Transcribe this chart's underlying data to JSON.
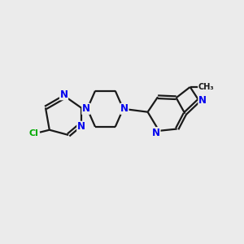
{
  "bg_color": "#ebebeb",
  "bond_color": "#1a1a1a",
  "atom_color": "#0000ee",
  "cl_color": "#00aa00",
  "line_width": 1.6,
  "font_size": 8.5,
  "figsize": [
    3.0,
    3.0
  ],
  "dpi": 100,
  "xlim": [
    0.0,
    10.0
  ],
  "ylim": [
    0.0,
    10.0
  ]
}
